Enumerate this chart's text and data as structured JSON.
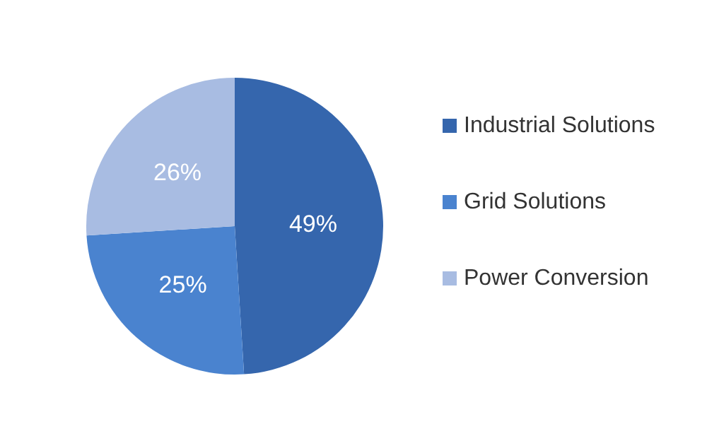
{
  "chart_data": {
    "type": "pie",
    "categories": [
      "Industrial Solutions",
      "Grid Solutions",
      "Power Conversion"
    ],
    "values": [
      49,
      25,
      26
    ],
    "colors": [
      "#3566ad",
      "#4a83cf",
      "#a8bce2"
    ],
    "value_labels": [
      "49%",
      "25%",
      "26%"
    ],
    "legend": "right"
  }
}
